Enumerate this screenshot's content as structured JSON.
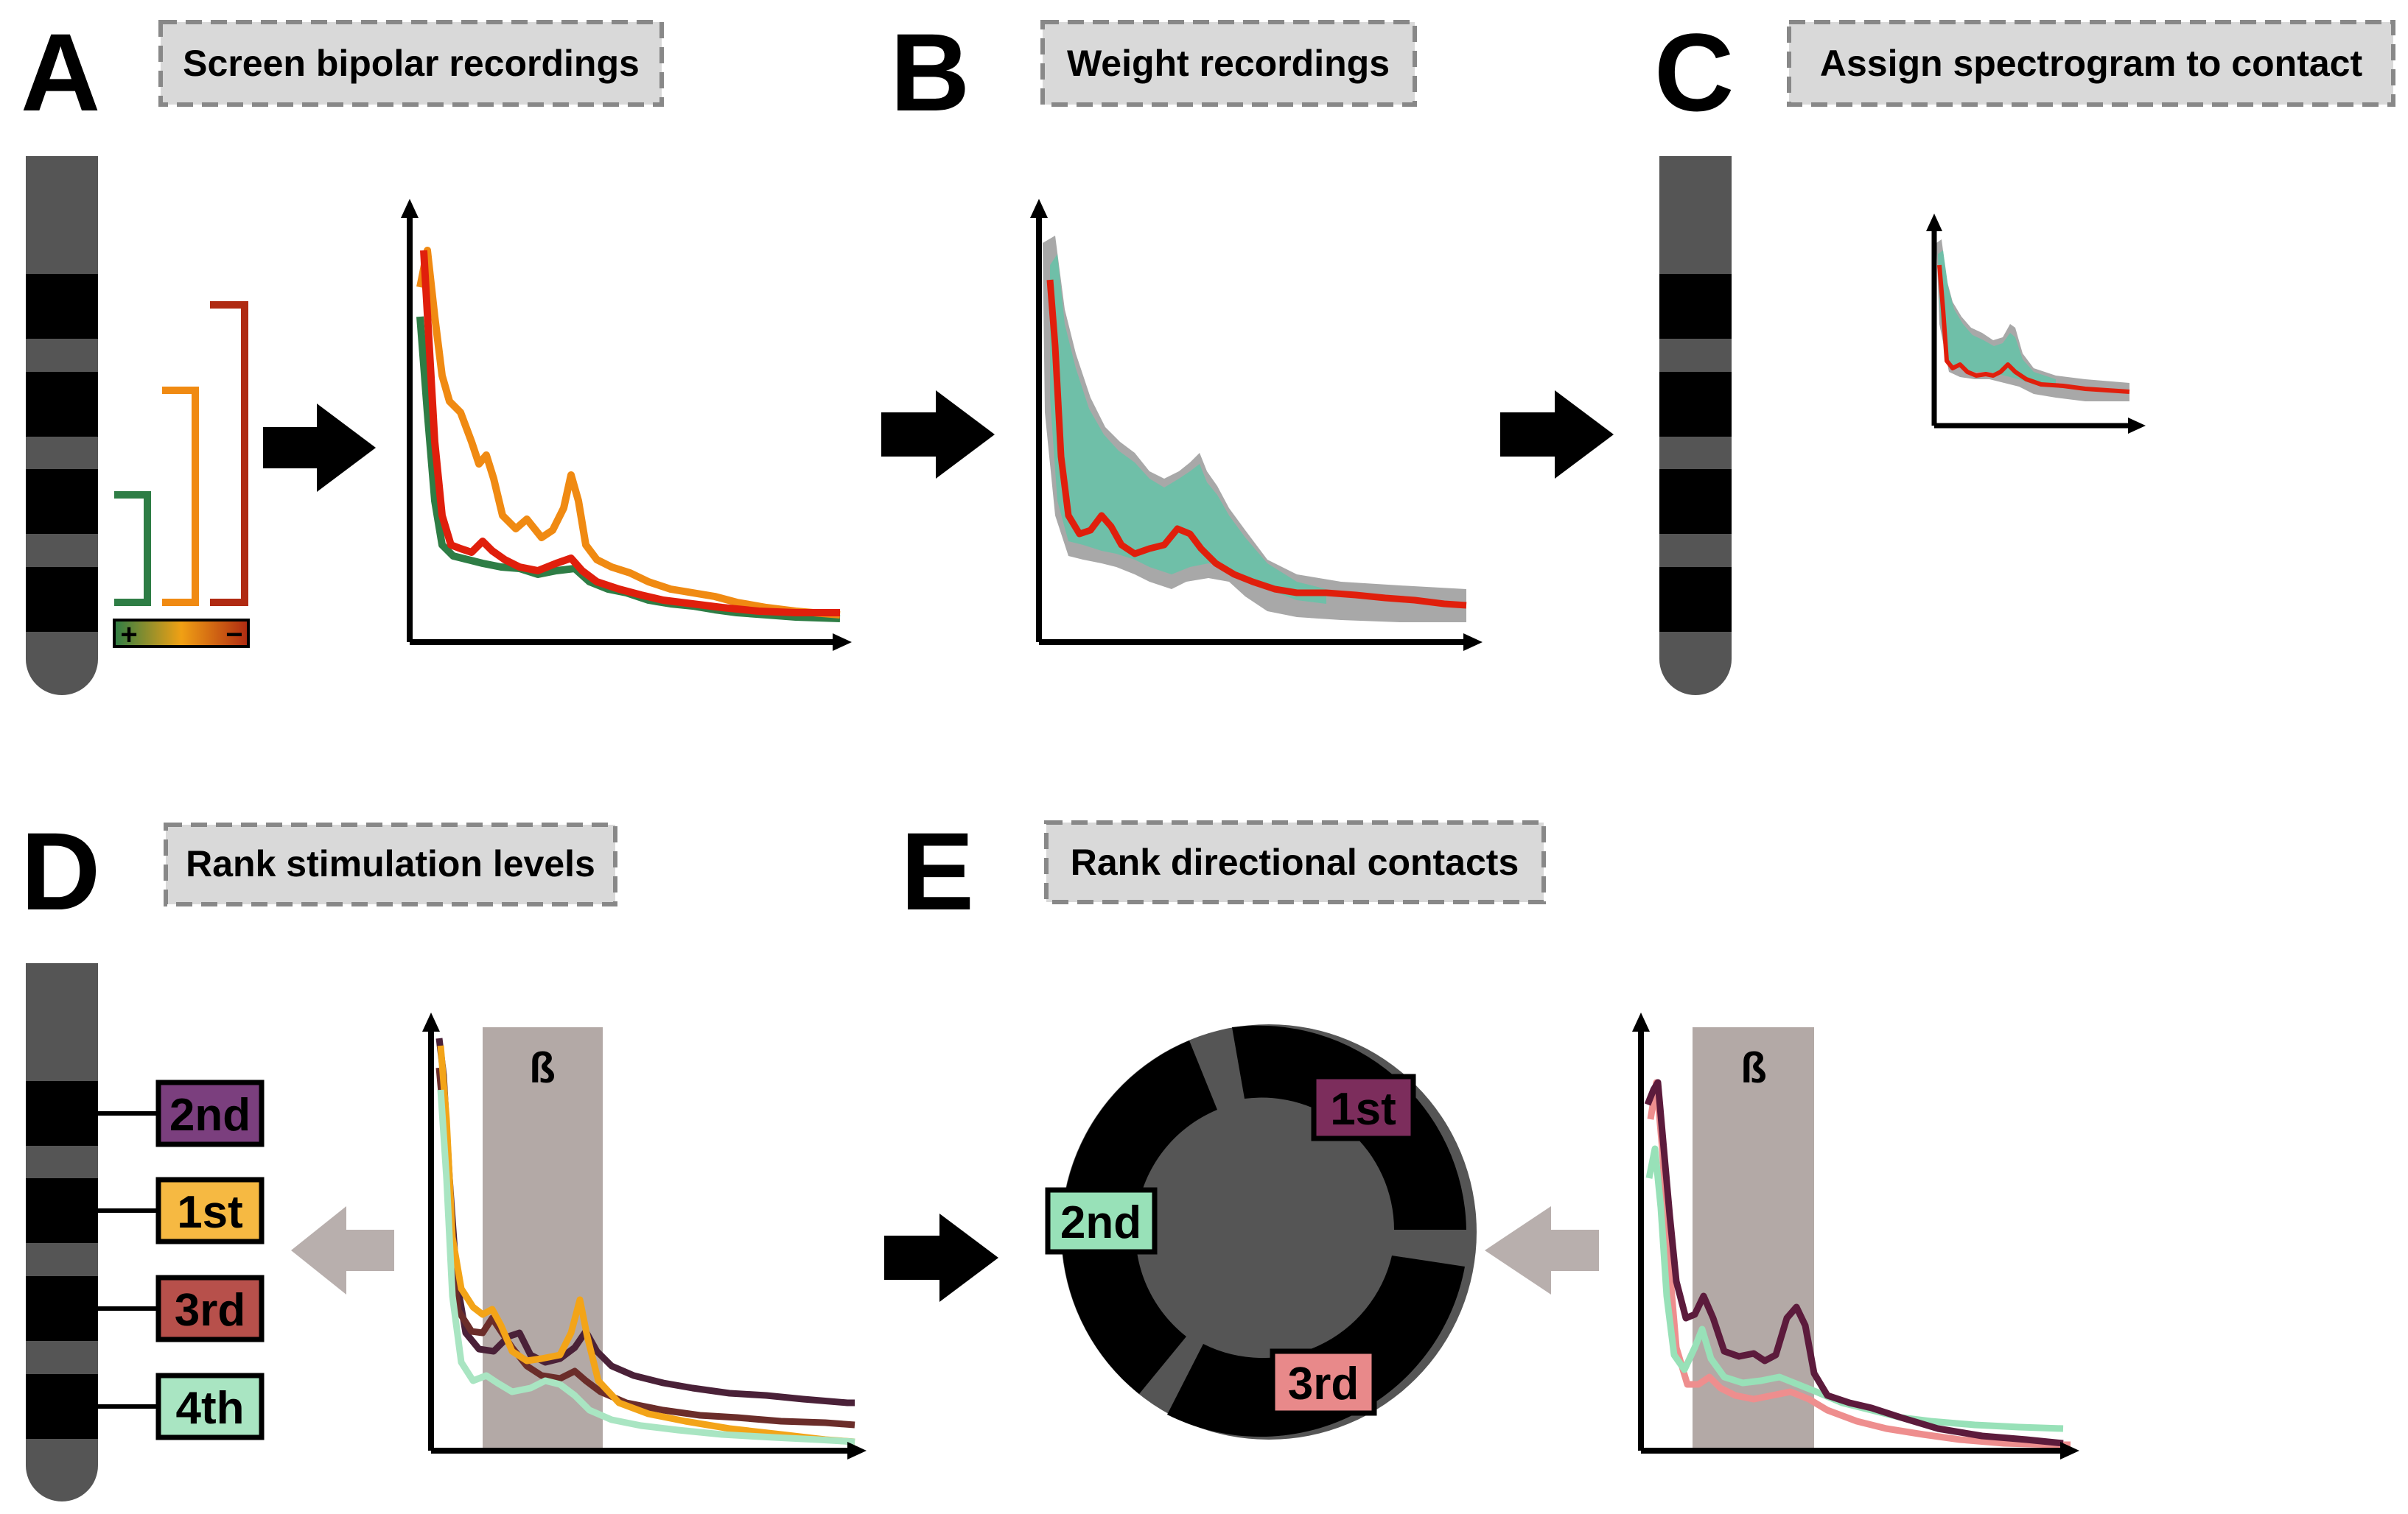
{
  "panels": {
    "A": {
      "letter": "A",
      "title": "Screen bipolar recordings"
    },
    "B": {
      "letter": "B",
      "title": "Weight recordings"
    },
    "C": {
      "letter": "C",
      "title": "Assign spectrogram to contact"
    },
    "D": {
      "letter": "D",
      "title": "Rank stimulation levels"
    },
    "E": {
      "letter": "E",
      "title": "Rank directional contacts"
    }
  },
  "polarity": {
    "plus": "+",
    "minus": "−"
  },
  "band": {
    "label": "ß"
  },
  "levels": [
    {
      "rank": "2nd",
      "color": "#7B3F7E"
    },
    {
      "rank": "1st",
      "color": "#F6B942"
    },
    {
      "rank": "3rd",
      "color": "#B7504B"
    },
    {
      "rank": "4th",
      "color": "#A9E5C2"
    }
  ],
  "directional": [
    {
      "rank": "1st",
      "color": "#7C2D5C"
    },
    {
      "rank": "2nd",
      "color": "#98E1B8"
    },
    {
      "rank": "3rd",
      "color": "#E8898A"
    }
  ],
  "colors": {
    "green": "#2E7D45",
    "orange": "#F08A12",
    "red": "#E01F0C",
    "darkred": "#B02A12",
    "teal": "#6FBFA8",
    "gray": "#A8A8A8",
    "electrode": "#555555",
    "contact": "#000000",
    "bandgray": "#B3A9A6",
    "arrowgray": "#B8AFAD",
    "trace1": "#4A2138",
    "trace2": "#6B2D2A",
    "trace3": "#F3A418",
    "trace4": "#A9E5C2",
    "trace5": "#5C1B3C",
    "trace6": "#98E1B8",
    "trace7": "#EE8E8E"
  }
}
